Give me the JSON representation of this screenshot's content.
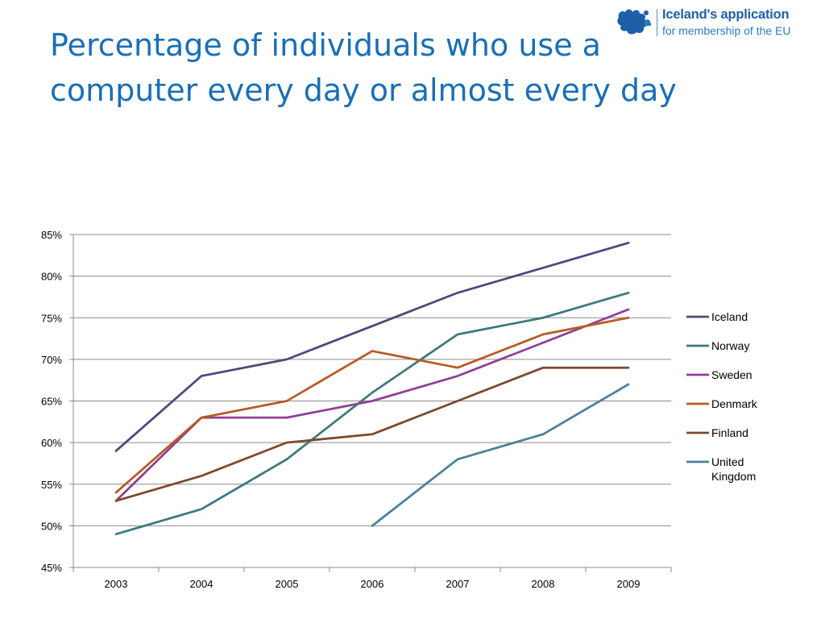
{
  "slide": {
    "title_line1": "Percentage of individuals who use a",
    "title_line2": "computer every day or almost every day"
  },
  "logo": {
    "line1": "Iceland's application",
    "line2": "for membership of the EU",
    "icon": "iceland-map-icon"
  },
  "chart_data": {
    "type": "line",
    "categories": [
      "2003",
      "2004",
      "2005",
      "2006",
      "2007",
      "2008",
      "2009"
    ],
    "y_ticks": [
      "45%",
      "50%",
      "55%",
      "60%",
      "65%",
      "70%",
      "75%",
      "80%",
      "85%"
    ],
    "ylim": [
      45,
      85
    ],
    "y_unit": "%",
    "grid": "horizontal",
    "legend_position": "right",
    "series": [
      {
        "name": "Iceland",
        "color": "#4a4a7e",
        "values": [
          59,
          68,
          70,
          74,
          78,
          81,
          84
        ]
      },
      {
        "name": "Norway",
        "color": "#3b7a7a",
        "values": [
          49,
          52,
          58,
          66,
          73,
          75,
          78
        ]
      },
      {
        "name": "Sweden",
        "color": "#8e3f95",
        "values": [
          53,
          63,
          63,
          65,
          68,
          72,
          76
        ]
      },
      {
        "name": "Denmark",
        "color": "#b85a24",
        "values": [
          54,
          63,
          65,
          71,
          69,
          73,
          75
        ]
      },
      {
        "name": "Finland",
        "color": "#7a4a2c",
        "values": [
          53,
          56,
          60,
          61,
          65,
          69,
          69
        ]
      },
      {
        "name": "United Kingdom",
        "color": "#4a7f9f",
        "values": [
          null,
          null,
          null,
          50,
          58,
          61,
          67
        ]
      }
    ]
  }
}
